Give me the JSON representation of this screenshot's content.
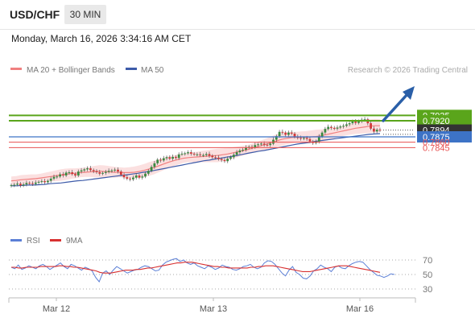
{
  "header": {
    "pair": "USD/CHF",
    "timeframe": "30 MIN"
  },
  "datetime": "Monday, March 16, 2026 3:34:16 AM CET",
  "legend": {
    "ma20": "MA 20 + Bollinger Bands",
    "ma50": "MA 50",
    "credit": "Research © 2026 Trading Central"
  },
  "rsi_legend": {
    "rsi": "RSI",
    "ma9": "9MA"
  },
  "colors": {
    "resistance": "#5aa51b",
    "support": "#3d73c6",
    "level": "#e85050",
    "price": "#333333",
    "ma20": "#f08080",
    "ma50": "#3d5ba9",
    "bull": "#3a8a40",
    "bear": "#d23a3a",
    "arrow": "#2a5fa8",
    "rsi": "#5b7fd6",
    "ma9": "#d83030"
  },
  "chart_data": [
    {
      "type": "candlestick",
      "title": "USD/CHF 30 MIN",
      "ylim": [
        0.7735,
        0.7948
      ],
      "x_ticks": [
        "Mar 12",
        "Mar 13",
        "Mar 16"
      ],
      "levels": [
        {
          "value": 0.7935,
          "label": "0.7935",
          "kind": "resistance"
        },
        {
          "value": 0.792,
          "label": "0.7920",
          "kind": "resistance"
        },
        {
          "value": 0.7894,
          "label": "0.7894",
          "kind": "price"
        },
        {
          "value": 0.7875,
          "label": "0.7875",
          "kind": "support"
        },
        {
          "value": 0.786,
          "label": "0.7860",
          "kind": "level"
        },
        {
          "value": 0.7845,
          "label": "0.7845",
          "kind": "level"
        }
      ],
      "close": [
        0.774,
        0.7741,
        0.7744,
        0.7739,
        0.7742,
        0.7746,
        0.7745,
        0.7743,
        0.7747,
        0.7749,
        0.7751,
        0.7748,
        0.7752,
        0.7758,
        0.7763,
        0.7764,
        0.777,
        0.7767,
        0.7775,
        0.7776,
        0.7771,
        0.7767,
        0.7778,
        0.7781,
        0.7784,
        0.7787,
        0.7782,
        0.7779,
        0.7776,
        0.7772,
        0.7774,
        0.7777,
        0.778,
        0.7781,
        0.7783,
        0.7778,
        0.7769,
        0.7762,
        0.7758,
        0.7756,
        0.7761,
        0.7767,
        0.7761,
        0.7764,
        0.7772,
        0.778,
        0.7791,
        0.7801,
        0.7811,
        0.7809,
        0.7815,
        0.7818,
        0.7814,
        0.7819,
        0.7816,
        0.7826,
        0.7828,
        0.7829,
        0.7832,
        0.7828,
        0.7826,
        0.7826,
        0.7824,
        0.7824,
        0.7827,
        0.7822,
        0.7818,
        0.7817,
        0.7813,
        0.781,
        0.7807,
        0.7814,
        0.7818,
        0.7825,
        0.7832,
        0.7837,
        0.7839,
        0.7845,
        0.7847,
        0.7846,
        0.7852,
        0.7854,
        0.7856,
        0.7853,
        0.7852,
        0.7856,
        0.7867,
        0.7877,
        0.7889,
        0.7887,
        0.7881,
        0.7887,
        0.7884,
        0.7876,
        0.7872,
        0.787,
        0.7872,
        0.7869,
        0.7862,
        0.7858,
        0.7862,
        0.7876,
        0.7887,
        0.7897,
        0.7903,
        0.79,
        0.7898,
        0.7901,
        0.7904,
        0.7906,
        0.791,
        0.7913,
        0.7918,
        0.7914,
        0.7919,
        0.7923,
        0.7924,
        0.7913,
        0.7898,
        0.789,
        0.7895,
        0.7894
      ],
      "series": [
        {
          "name": "MA 20",
          "values": [
            0.7752,
            0.7753,
            0.7755,
            0.7756,
            0.7757,
            0.7758,
            0.776,
            0.7762,
            0.7764,
            0.7766,
            0.7768,
            0.777,
            0.7772,
            0.7773,
            0.7775,
            0.7776,
            0.7777,
            0.7778,
            0.7779,
            0.7778,
            0.7777,
            0.7776,
            0.7776,
            0.7775,
            0.7775,
            0.7776,
            0.7778,
            0.7781,
            0.7785,
            0.7789,
            0.7794,
            0.7799,
            0.7804,
            0.7808,
            0.7812,
            0.7815,
            0.7817,
            0.7818,
            0.7819,
            0.782,
            0.7821,
            0.7822,
            0.7823,
            0.7825,
            0.7827,
            0.783,
            0.7833,
            0.7836,
            0.7839,
            0.7843,
            0.7847,
            0.7851,
            0.7855,
            0.786,
            0.7864,
            0.7868,
            0.7871,
            0.7873,
            0.7874,
            0.7874,
            0.7874,
            0.7875,
            0.7876,
            0.7878,
            0.7881,
            0.7884,
            0.7887,
            0.789,
            0.7893,
            0.7896,
            0.7899,
            0.7901,
            0.7903,
            0.7905,
            0.7906,
            0.7906
          ]
        },
        {
          "name": "MA 50",
          "values": [
            0.7738,
            0.7738,
            0.7739,
            0.774,
            0.774,
            0.7741,
            0.7742,
            0.7744,
            0.7745,
            0.7746,
            0.7748,
            0.775,
            0.7752,
            0.7753,
            0.7755,
            0.7757,
            0.7759,
            0.7761,
            0.7763,
            0.7765,
            0.7767,
            0.7769,
            0.7771,
            0.7773,
            0.7776,
            0.7778,
            0.7781,
            0.7784,
            0.7787,
            0.779,
            0.7793,
            0.7796,
            0.7799,
            0.7802,
            0.7805,
            0.7808,
            0.781,
            0.7813,
            0.7815,
            0.7818,
            0.782,
            0.7823,
            0.7826,
            0.7829,
            0.7832,
            0.7835,
            0.7837,
            0.784,
            0.7843,
            0.7846,
            0.7849,
            0.7852,
            0.7855,
            0.7857,
            0.7859,
            0.7862,
            0.7864,
            0.7866,
            0.7868,
            0.787,
            0.7872,
            0.7874,
            0.7876,
            0.7878,
            0.788,
            0.7882,
            0.7883,
            0.7884
          ]
        }
      ]
    },
    {
      "type": "line",
      "title": "RSI",
      "ylim": [
        20,
        80
      ],
      "y_ticks": [
        70,
        50,
        30
      ],
      "series": [
        {
          "name": "RSI",
          "values": [
            60,
            58,
            63,
            57,
            59,
            62,
            60,
            58,
            62,
            64,
            61,
            57,
            60,
            63,
            66,
            61,
            58,
            64,
            62,
            59,
            56,
            60,
            58,
            55,
            46,
            40,
            52,
            55,
            50,
            56,
            61,
            58,
            55,
            52,
            54,
            56,
            57,
            60,
            62,
            61,
            58,
            55,
            56,
            63,
            67,
            69,
            71,
            72,
            68,
            70,
            66,
            64,
            66,
            62,
            60,
            58,
            62,
            60,
            57,
            59,
            63,
            61,
            60,
            57,
            56,
            58,
            61,
            62,
            64,
            60,
            58,
            60,
            66,
            69,
            68,
            64,
            58,
            52,
            48,
            56,
            61,
            53,
            50,
            45,
            44,
            48,
            55,
            58,
            63,
            60,
            58,
            54,
            60,
            62,
            59,
            58,
            62,
            65,
            67,
            68,
            67,
            62,
            57,
            53,
            49,
            48,
            46,
            48,
            51,
            50
          ]
        },
        {
          "name": "9MA",
          "values": [
            60,
            60,
            59,
            59,
            60,
            60,
            60,
            60,
            61,
            61,
            61,
            61,
            61,
            62,
            62,
            61,
            61,
            60,
            60,
            59,
            58,
            57,
            56,
            55,
            53,
            52,
            52,
            52,
            53,
            54,
            55,
            56,
            56,
            56,
            57,
            57,
            58,
            59,
            59,
            60,
            61,
            62,
            63,
            64,
            65,
            66,
            66,
            67,
            67,
            67,
            66,
            65,
            64,
            63,
            62,
            61,
            61,
            60,
            60,
            59,
            59,
            59,
            59,
            59,
            59,
            60,
            60,
            61,
            61,
            62,
            62,
            62,
            61,
            60,
            59,
            58,
            57,
            56,
            55,
            54,
            54,
            54,
            55,
            56,
            57,
            58,
            59,
            60,
            61,
            62,
            62,
            62,
            61,
            60,
            59,
            58,
            57,
            56,
            55,
            54,
            53
          ]
        }
      ]
    }
  ]
}
